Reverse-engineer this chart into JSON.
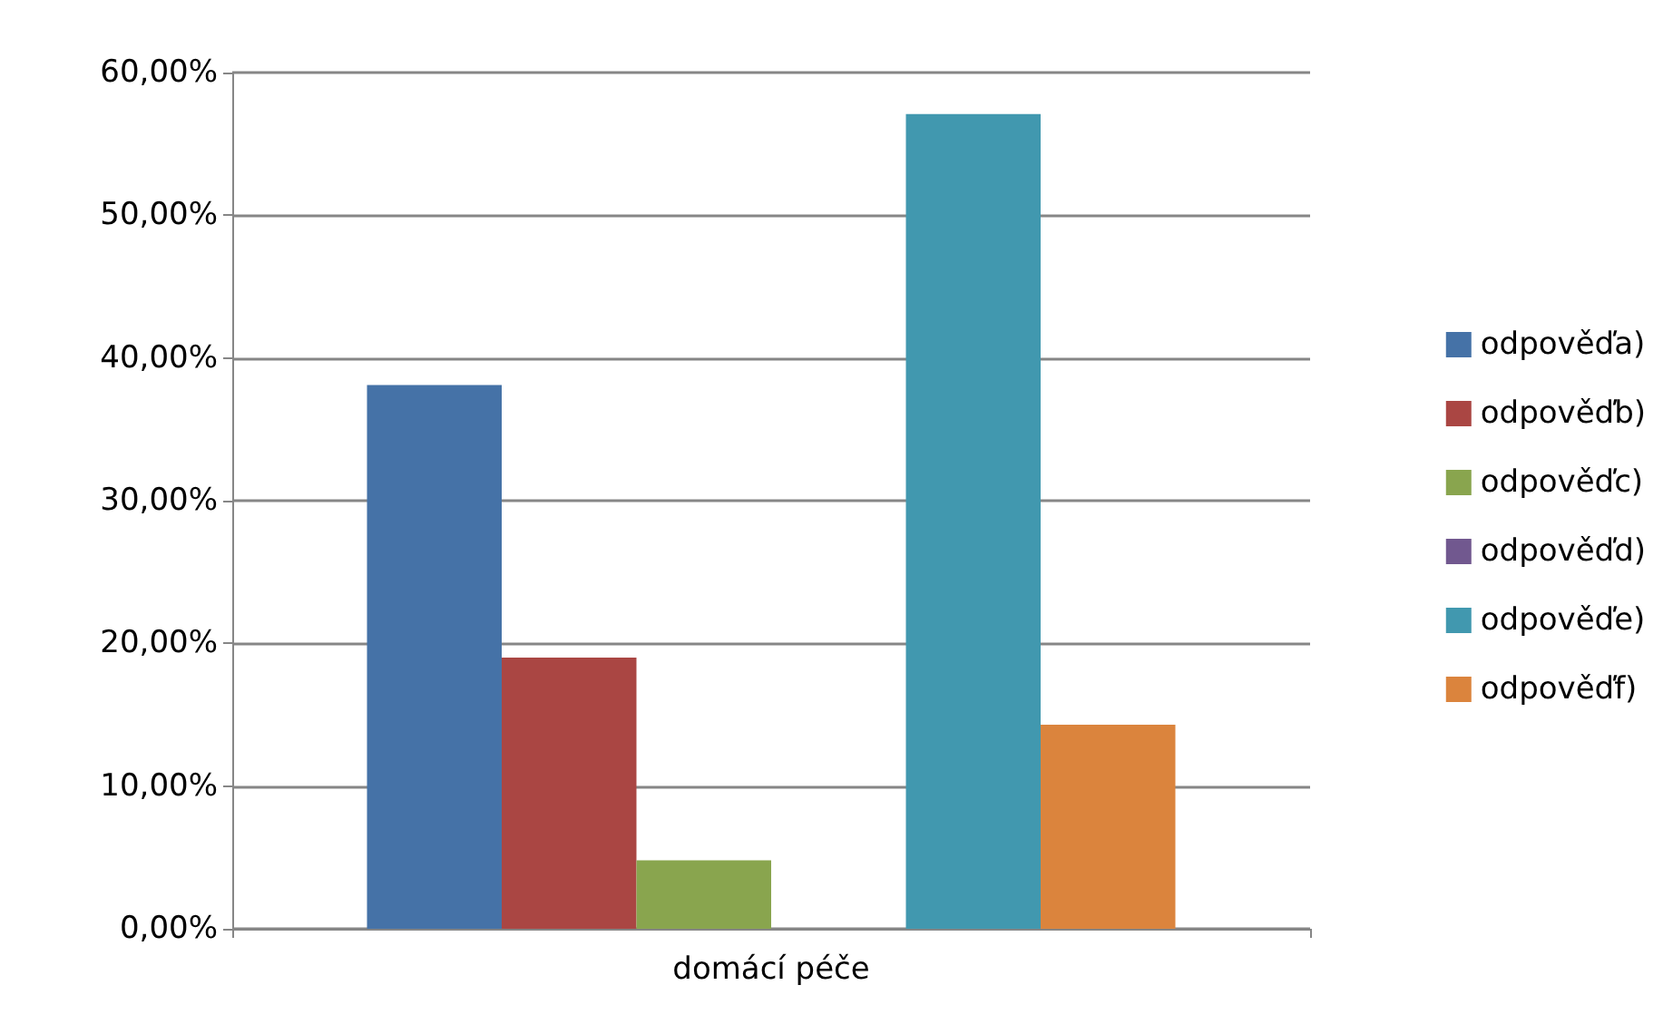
{
  "chart_data": {
    "type": "bar",
    "categories": [
      "domácí péče"
    ],
    "series": [
      {
        "name": "odpověďa)",
        "color": "#4572a7",
        "values": [
          38.1
        ]
      },
      {
        "name": "odpověďb)",
        "color": "#aa4643",
        "values": [
          19
        ]
      },
      {
        "name": "odpověďc)",
        "color": "#89a54e",
        "values": [
          4.8
        ]
      },
      {
        "name": "odpověďd)",
        "color": "#71588f",
        "values": [
          0
        ]
      },
      {
        "name": "odpověďe)",
        "color": "#4198af",
        "values": [
          57.1
        ]
      },
      {
        "name": "odpověďf)",
        "color": "#db843d",
        "values": [
          14.3
        ]
      }
    ],
    "ylim": [
      0,
      60
    ],
    "yticks": [
      {
        "value": 0,
        "label": "0,00%"
      },
      {
        "value": 10,
        "label": "10,00%"
      },
      {
        "value": 20,
        "label": "20,00%"
      },
      {
        "value": 30,
        "label": "30,00%"
      },
      {
        "value": 40,
        "label": "40,00%"
      },
      {
        "value": 50,
        "label": "50,00%"
      },
      {
        "value": 60,
        "label": "60,00%"
      }
    ],
    "grid": "y",
    "legend": "right"
  }
}
